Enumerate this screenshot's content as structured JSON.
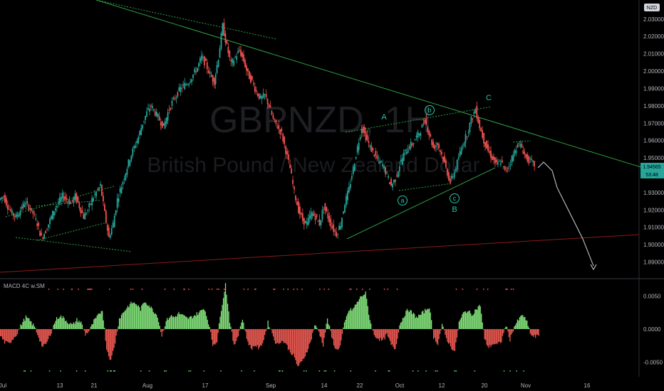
{
  "chart": {
    "watermark_symbol": "GBPNZD, 1H",
    "watermark_name": "British Pound / New Zealand Dollar",
    "currency_badge": "NZD",
    "price_label": "1.94565",
    "countdown_label": "53:48"
  },
  "chart_data": [
    {
      "type": "line",
      "description_label": "",
      "y_ticks": [
        "1.89000",
        "1.90000",
        "1.91000",
        "1.92000",
        "1.93000",
        "1.94000",
        "1.95000",
        "1.96000",
        "1.97000",
        "1.98000",
        "1.99000",
        "2.00000",
        "2.01000",
        "2.02000",
        "2.03000"
      ],
      "ylim": [
        1.882,
        2.041
      ],
      "x_ticks": [
        "Jul",
        "13",
        "21",
        "Aug",
        "17",
        "Sep",
        "14",
        "22",
        "Oct",
        "12",
        "20",
        "Nov",
        "16"
      ],
      "series": [
        {
          "values": [
            1.926,
            1.928,
            1.922,
            1.918,
            1.916,
            1.92,
            1.924,
            1.922,
            1.918,
            1.912,
            1.904,
            1.908,
            1.914,
            1.92,
            1.924,
            1.928,
            1.926,
            1.924,
            1.928,
            1.922,
            1.916,
            1.92,
            1.926,
            1.93,
            1.934,
            1.918,
            1.904,
            1.912,
            1.926,
            1.934,
            1.942,
            1.95,
            1.956,
            1.962,
            1.97,
            1.976,
            1.98,
            1.976,
            1.972,
            1.968,
            1.976,
            1.982,
            1.986,
            1.99,
            1.992,
            1.994,
            1.998,
            2.002,
            2.008,
            2.004,
            1.998,
            1.994,
            2.008,
            2.026,
            2.014,
            2.004,
            2.008,
            2.012,
            2.006,
            1.998,
            1.994,
            1.988,
            1.984,
            1.986,
            1.98,
            1.972,
            1.968,
            1.964,
            1.954,
            1.944,
            1.93,
            1.92,
            1.914,
            1.912,
            1.918,
            1.916,
            1.912,
            1.922,
            1.916,
            1.91,
            1.906,
            1.912,
            1.924,
            1.932,
            1.944,
            1.956,
            1.968,
            1.962,
            1.956,
            1.952,
            1.948,
            1.946,
            1.94,
            1.934,
            1.938,
            1.946,
            1.952,
            1.956,
            1.958,
            1.962,
            1.966,
            1.972,
            1.964,
            1.956,
            1.958,
            1.952,
            1.944,
            1.936,
            1.942,
            1.95,
            1.958,
            1.964,
            1.972,
            1.978,
            1.968,
            1.96,
            1.954,
            1.95,
            1.946,
            1.948,
            1.942,
            1.946,
            1.952,
            1.958,
            1.956,
            1.95,
            1.948,
            1.946
          ]
        }
      ],
      "wave_labels": {
        "A": "A",
        "B": "B",
        "C": "C",
        "a": "a",
        "b": "b",
        "c": "c"
      }
    },
    {
      "type": "bar",
      "title": "MACD 4C w.SM",
      "y_ticks": [
        "0.0050",
        "0.0000",
        "-0.0050"
      ],
      "ylim": [
        -0.0072,
        0.0075
      ],
      "values": [
        -0.001,
        -0.002,
        -0.0022,
        -0.0014,
        -0.0006,
        0.0008,
        0.0018,
        0.0012,
        0.0004,
        -0.0012,
        -0.0028,
        -0.002,
        -0.0004,
        0.0014,
        0.002,
        0.0016,
        0.001,
        0.0006,
        0.0014,
        0.001,
        -0.0008,
        -0.0002,
        0.0012,
        0.002,
        0.003,
        -0.003,
        -0.0048,
        -0.002,
        0.0016,
        0.0026,
        0.0034,
        0.004,
        0.0038,
        0.003,
        0.0042,
        0.0036,
        0.0028,
        0.002,
        -0.001,
        0.0012,
        0.002,
        0.0018,
        0.0024,
        0.002,
        0.0016,
        0.0018,
        0.0022,
        0.0026,
        0.0032,
        0.001,
        -0.0024,
        -0.0018,
        0.003,
        0.0068,
        0.0012,
        -0.0026,
        -0.0008,
        0.0016,
        -0.0014,
        -0.003,
        -0.0024,
        -0.003,
        -0.0016,
        0.001,
        -0.0006,
        -0.0024,
        -0.0018,
        -0.002,
        -0.0032,
        -0.004,
        -0.0056,
        -0.005,
        -0.0036,
        -0.002,
        0.0006,
        -0.0004,
        -0.0024,
        0.0016,
        -0.0012,
        -0.0032,
        -0.0026,
        0.0008,
        0.0028,
        0.003,
        0.004,
        0.005,
        0.0054,
        0.0014,
        -0.001,
        -0.0014,
        -0.0018,
        -0.0008,
        -0.0024,
        -0.003,
        0.0006,
        0.002,
        0.003,
        0.0024,
        0.0018,
        0.0022,
        0.0028,
        0.0034,
        -0.0012,
        -0.0022,
        0.0006,
        -0.0014,
        -0.0026,
        -0.0034,
        0.001,
        0.0024,
        0.0028,
        0.0022,
        0.003,
        0.0036,
        -0.0016,
        -0.0028,
        -0.0022,
        -0.0024,
        -0.0018,
        0.0006,
        -0.0016,
        0.0004,
        0.0014,
        0.0022,
        0.001,
        -0.001,
        -0.0012,
        -0.0008
      ]
    }
  ]
}
